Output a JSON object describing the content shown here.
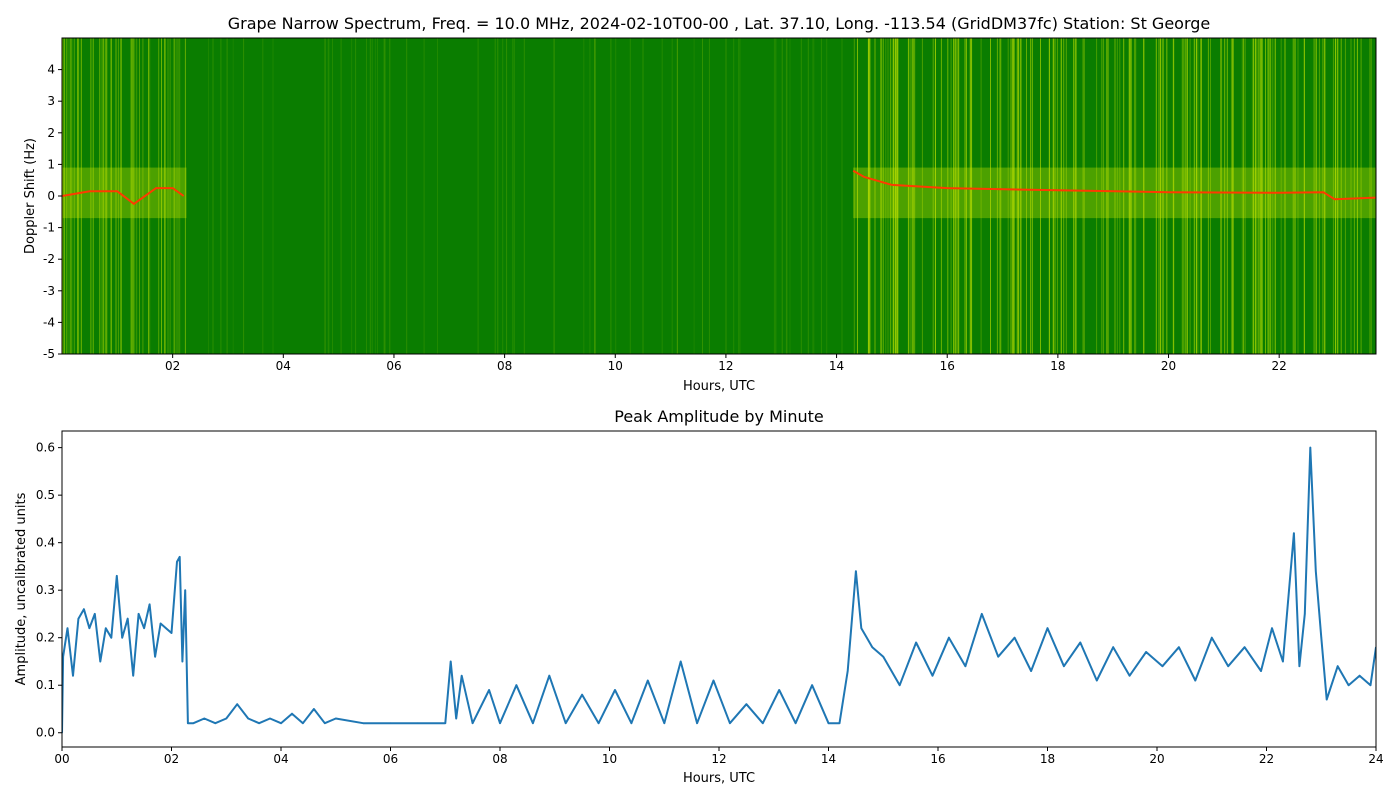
{
  "colors": {
    "spectrum_background": "#0a7d00",
    "spectrum_noise": "#c8e600",
    "doppler_trace": "#ff3a00",
    "amplitude_line": "#1f77b4"
  },
  "chart_data": [
    {
      "type": "heatmap",
      "title": "Grape Narrow Spectrum, Freq. = 10.0 MHz, 2024-02-10T00-00 , Lat.  37.10, Long. -113.54 (GridDM37fc) Station: St George",
      "xlabel": "Hours, UTC",
      "ylabel": "Doppler Shift (Hz)",
      "xlim": [
        0,
        23.75
      ],
      "ylim": [
        -5,
        5
      ],
      "xticks": [
        "02",
        "04",
        "06",
        "08",
        "10",
        "12",
        "14",
        "16",
        "18",
        "20",
        "22"
      ],
      "yticks": [
        "4",
        "3",
        "2",
        "1",
        "0",
        "-1",
        "-2",
        "-3",
        "-4",
        "-5"
      ],
      "colormap": "green-yellow-red (low to high power)",
      "doppler_trace": {
        "x": [
          0,
          0.5,
          1.0,
          1.3,
          1.7,
          2.0,
          2.2,
          14.3,
          14.5,
          15.0,
          16,
          18,
          20,
          22,
          22.8,
          23.0,
          23.75
        ],
        "y": [
          0.0,
          0.15,
          0.15,
          -0.25,
          0.25,
          0.25,
          0.0,
          0.8,
          0.6,
          0.35,
          0.25,
          0.18,
          0.12,
          0.1,
          0.12,
          -0.1,
          -0.05
        ]
      }
    },
    {
      "type": "line",
      "title": "Peak Amplitude by Minute",
      "xlabel": "Hours, UTC",
      "ylabel": "Amplitude, uncalibrated units",
      "xlim": [
        0,
        24
      ],
      "ylim": [
        -0.03,
        0.635
      ],
      "xticks": [
        "00",
        "02",
        "04",
        "06",
        "08",
        "10",
        "12",
        "14",
        "16",
        "18",
        "20",
        "22",
        "24"
      ],
      "yticks": [
        "0.0",
        "0.1",
        "0.2",
        "0.3",
        "0.4",
        "0.5",
        "0.6"
      ],
      "series": [
        {
          "x": [
            0.0,
            0.02,
            0.1,
            0.2,
            0.3,
            0.4,
            0.5,
            0.6,
            0.7,
            0.8,
            0.9,
            1.0,
            1.1,
            1.2,
            1.3,
            1.4,
            1.5,
            1.6,
            1.7,
            1.8,
            1.9,
            2.0,
            2.1,
            2.15,
            2.2,
            2.25,
            2.3,
            2.4,
            2.6,
            2.8,
            3.0,
            3.2,
            3.4,
            3.6,
            3.8,
            4.0,
            4.2,
            4.4,
            4.6,
            4.8,
            5.0,
            5.5,
            6.0,
            6.5,
            7.0,
            7.1,
            7.2,
            7.3,
            7.5,
            7.8,
            8.0,
            8.3,
            8.6,
            8.9,
            9.2,
            9.5,
            9.8,
            10.1,
            10.4,
            10.7,
            11.0,
            11.3,
            11.6,
            11.9,
            12.2,
            12.5,
            12.8,
            13.1,
            13.4,
            13.7,
            14.0,
            14.2,
            14.35,
            14.5,
            14.6,
            14.8,
            15.0,
            15.3,
            15.6,
            15.9,
            16.2,
            16.5,
            16.8,
            17.1,
            17.4,
            17.7,
            18.0,
            18.3,
            18.6,
            18.9,
            19.2,
            19.5,
            19.8,
            20.1,
            20.4,
            20.7,
            21.0,
            21.3,
            21.6,
            21.9,
            22.1,
            22.3,
            22.5,
            22.6,
            22.7,
            22.8,
            22.9,
            23.0,
            23.1,
            23.3,
            23.5,
            23.7,
            23.9,
            24.0
          ],
          "y": [
            0.0,
            0.16,
            0.22,
            0.12,
            0.24,
            0.26,
            0.22,
            0.25,
            0.15,
            0.22,
            0.2,
            0.33,
            0.2,
            0.24,
            0.12,
            0.25,
            0.22,
            0.27,
            0.16,
            0.23,
            0.22,
            0.21,
            0.36,
            0.37,
            0.15,
            0.3,
            0.02,
            0.02,
            0.03,
            0.02,
            0.03,
            0.06,
            0.03,
            0.02,
            0.03,
            0.02,
            0.04,
            0.02,
            0.05,
            0.02,
            0.03,
            0.02,
            0.02,
            0.02,
            0.02,
            0.15,
            0.03,
            0.12,
            0.02,
            0.09,
            0.02,
            0.1,
            0.02,
            0.12,
            0.02,
            0.08,
            0.02,
            0.09,
            0.02,
            0.11,
            0.02,
            0.15,
            0.02,
            0.11,
            0.02,
            0.06,
            0.02,
            0.09,
            0.02,
            0.1,
            0.02,
            0.02,
            0.13,
            0.34,
            0.22,
            0.18,
            0.16,
            0.1,
            0.19,
            0.12,
            0.2,
            0.14,
            0.25,
            0.16,
            0.2,
            0.13,
            0.22,
            0.14,
            0.19,
            0.11,
            0.18,
            0.12,
            0.17,
            0.14,
            0.18,
            0.11,
            0.2,
            0.14,
            0.18,
            0.13,
            0.22,
            0.15,
            0.42,
            0.14,
            0.25,
            0.6,
            0.34,
            0.2,
            0.07,
            0.14,
            0.1,
            0.12,
            0.1,
            0.18
          ]
        }
      ]
    }
  ]
}
